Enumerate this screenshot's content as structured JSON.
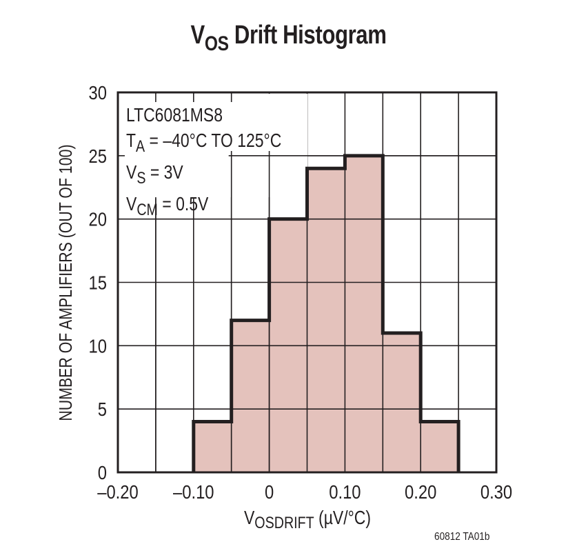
{
  "chart_data": {
    "type": "bar",
    "subtype": "histogram",
    "title": "VOS Drift Histogram",
    "title_parts": {
      "main": "V",
      "sub": "OS",
      "rest": " Drift Histogram"
    },
    "xlabel": "VOSDRIFT (µV/°C)",
    "xlabel_parts": {
      "main": "V",
      "sub": "OSDRIFT",
      "rest": " (µV/°C)"
    },
    "ylabel": "NUMBER OF AMPLIFIERS (OUT OF 100)",
    "xlim": [
      -0.2,
      0.3
    ],
    "ylim": [
      0,
      30
    ],
    "x_ticks": [
      "-0.20",
      "-0.10",
      "0",
      "0.10",
      "0.20",
      "0.30"
    ],
    "x_tick_labels": [
      "–0.20",
      "–0.10",
      "0",
      "0.10",
      "0.20",
      "0.30"
    ],
    "y_ticks": [
      "0",
      "5",
      "10",
      "15",
      "20",
      "25",
      "30"
    ],
    "grid": true,
    "grid_x_step": 0.05,
    "grid_y_step": 5,
    "bins": [
      {
        "start": -0.1,
        "end": -0.05,
        "count": 4
      },
      {
        "start": -0.05,
        "end": 0.0,
        "count": 12
      },
      {
        "start": 0.0,
        "end": 0.05,
        "count": 20
      },
      {
        "start": 0.05,
        "end": 0.1,
        "count": 24
      },
      {
        "start": 0.1,
        "end": 0.15,
        "count": 25
      },
      {
        "start": 0.15,
        "end": 0.2,
        "count": 11
      },
      {
        "start": 0.2,
        "end": 0.25,
        "count": 4
      }
    ],
    "categories": [
      "-0.10 to -0.05",
      "-0.05 to 0",
      "0 to 0.05",
      "0.05 to 0.10",
      "0.10 to 0.15",
      "0.15 to 0.20",
      "0.20 to 0.25"
    ],
    "values": [
      4,
      12,
      20,
      24,
      25,
      11,
      4
    ],
    "bar_color": "#e4c2bc",
    "outline_color": "#231f20",
    "annotations": [
      "LTC6081MS8",
      "TA = –40°C TO 125°C",
      "VS = 3V",
      "VCM = 0.5V"
    ],
    "legend_position": "upper-left"
  },
  "legend": {
    "line1": "LTC6081MS8",
    "line2_main": "T",
    "line2_sub": "A",
    "line2_rest": " = –40°C TO 125°C",
    "line3_main": "V",
    "line3_sub": "S",
    "line3_rest": " = 3V",
    "line4_main": "V",
    "line4_sub": "CM",
    "line4_rest": " = 0.5V"
  },
  "figure_id": "60812 TA01b"
}
